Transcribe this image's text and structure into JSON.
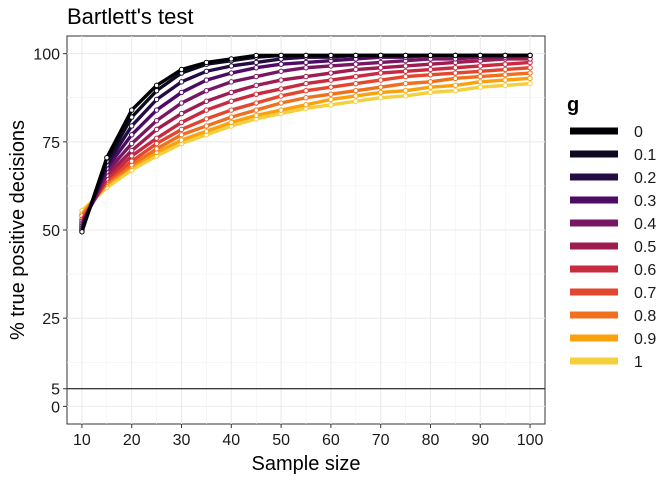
{
  "chart_data": {
    "type": "line",
    "title": "Bartlett's test",
    "xlabel": "Sample size",
    "ylabel": "% true positive decisions",
    "xlim": [
      7,
      103
    ],
    "ylim": [
      -5,
      105
    ],
    "x_ticks": [
      10,
      20,
      30,
      40,
      50,
      60,
      70,
      80,
      90,
      100
    ],
    "y_ticks": [
      0,
      5,
      25,
      50,
      75,
      100
    ],
    "reference_line": 5,
    "grid": true,
    "legend": {
      "title": "g",
      "placement": "right"
    },
    "x": [
      10,
      15,
      20,
      25,
      30,
      35,
      40,
      45,
      50,
      55,
      60,
      65,
      70,
      75,
      80,
      85,
      90,
      95,
      100
    ],
    "series": [
      {
        "name": "1",
        "color": "#F4D03F",
        "values": [
          55.5,
          62,
          67,
          71,
          74.5,
          77,
          79.5,
          81.5,
          83,
          84.5,
          85.5,
          86.5,
          87.5,
          88,
          89,
          89.5,
          90.5,
          91,
          91.5
        ]
      },
      {
        "name": "0.9",
        "color": "#FAA20E",
        "values": [
          54.5,
          63,
          68,
          72,
          75.5,
          78,
          80.5,
          82.5,
          84,
          85.5,
          87,
          88,
          89,
          89.5,
          90.5,
          91,
          92,
          92.5,
          93
        ]
      },
      {
        "name": "0.8",
        "color": "#EF7120",
        "values": [
          54,
          63.5,
          68.5,
          73,
          77,
          79.5,
          82,
          84,
          86,
          87.5,
          88.5,
          89.5,
          90.5,
          91.5,
          92,
          93,
          93.5,
          94,
          94.5
        ]
      },
      {
        "name": "0.7",
        "color": "#E3472E",
        "values": [
          53,
          64,
          69.5,
          74.5,
          78.5,
          81.5,
          84,
          86,
          88,
          89.5,
          90.5,
          91.5,
          92.5,
          93.5,
          94,
          94.5,
          95,
          95.5,
          96
        ]
      },
      {
        "name": "0.6",
        "color": "#C82A3F",
        "values": [
          52.5,
          64.5,
          71,
          76,
          80.5,
          84,
          86.5,
          88.5,
          90,
          91.5,
          92.5,
          93.5,
          94.5,
          95,
          95.5,
          96,
          96.5,
          97,
          97.5
        ]
      },
      {
        "name": "0.5",
        "color": "#9E1D50",
        "values": [
          52,
          65.5,
          72.5,
          78.5,
          83,
          86.5,
          89,
          91,
          92.5,
          93.5,
          94.5,
          95.5,
          96,
          96.5,
          97,
          97.5,
          98,
          98.5,
          98.5
        ]
      },
      {
        "name": "0.4",
        "color": "#771763",
        "values": [
          51.5,
          66.5,
          74.5,
          81,
          86,
          89.5,
          92,
          93.5,
          95,
          96,
          96.5,
          97,
          97.5,
          98,
          98.5,
          98.5,
          99,
          99,
          99.5
        ]
      },
      {
        "name": "0.3",
        "color": "#4D0B66",
        "values": [
          51,
          67.5,
          77,
          84,
          89,
          92.5,
          94.5,
          96,
          97,
          97.5,
          98,
          98.5,
          99,
          99,
          99.5,
          99.5,
          99.5,
          99.5,
          99.5
        ]
      },
      {
        "name": "0.2",
        "color": "#250C45",
        "values": [
          50.5,
          68.5,
          79.5,
          87,
          92,
          95,
          96.5,
          97.5,
          98.5,
          99,
          99,
          99.5,
          99.5,
          99.5,
          99.5,
          99.5,
          99.5,
          99.5,
          99.5
        ]
      },
      {
        "name": "0.1",
        "color": "#0C0A1F",
        "values": [
          50,
          69.5,
          82,
          89.5,
          94.5,
          97,
          98,
          99,
          99.5,
          99.5,
          99.5,
          99.5,
          99.5,
          99.5,
          99.5,
          99.5,
          99.5,
          99.5,
          99.5
        ]
      },
      {
        "name": "0",
        "color": "#000004",
        "values": [
          49.5,
          70.5,
          84,
          91,
          95.5,
          97.5,
          98.5,
          99.5,
          99.5,
          99.5,
          99.5,
          99.5,
          99.5,
          99.5,
          99.5,
          99.5,
          99.5,
          99.5,
          99.5
        ]
      }
    ]
  }
}
